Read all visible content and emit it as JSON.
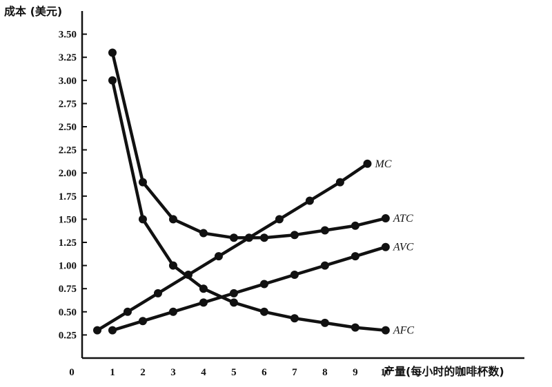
{
  "chart_data": {
    "type": "line",
    "ylabel": "成本 (美元)",
    "xlabel": "产量(每小时的咖啡杯数)",
    "origin_label": "0",
    "x_ticks": [
      1,
      2,
      3,
      4,
      5,
      6,
      7,
      8,
      9,
      10
    ],
    "y_ticks": [
      "0.25",
      "0.50",
      "0.75",
      "1.00",
      "1.25",
      "1.50",
      "1.75",
      "2.00",
      "2.25",
      "2.50",
      "2.75",
      "3.00",
      "3.25",
      "3.50"
    ],
    "xlim": [
      0,
      14.8
    ],
    "ylim": [
      0,
      3.75
    ],
    "grid": false,
    "series": [
      {
        "name": "MC",
        "x": [
          0.5,
          1.5,
          2.5,
          3.5,
          4.5,
          5.5,
          6.5,
          7.5,
          8.5,
          9.4
        ],
        "y": [
          0.3,
          0.5,
          0.7,
          0.9,
          1.1,
          1.3,
          1.5,
          1.7,
          1.9,
          2.1
        ]
      },
      {
        "name": "ATC",
        "x": [
          1,
          2,
          3,
          4,
          5,
          6,
          7,
          8,
          9,
          10
        ],
        "y": [
          3.3,
          1.9,
          1.5,
          1.35,
          1.3,
          1.3,
          1.33,
          1.38,
          1.43,
          1.51
        ]
      },
      {
        "name": "AVC",
        "x": [
          1,
          2,
          3,
          4,
          5,
          6,
          7,
          8,
          9,
          10
        ],
        "y": [
          0.3,
          0.4,
          0.5,
          0.6,
          0.7,
          0.8,
          0.9,
          1.0,
          1.1,
          1.2
        ]
      },
      {
        "name": "AFC",
        "x": [
          1,
          2,
          3,
          4,
          5,
          6,
          7,
          8,
          9,
          10
        ],
        "y": [
          3.0,
          1.5,
          1.0,
          0.75,
          0.6,
          0.5,
          0.43,
          0.38,
          0.33,
          0.3
        ]
      }
    ]
  }
}
